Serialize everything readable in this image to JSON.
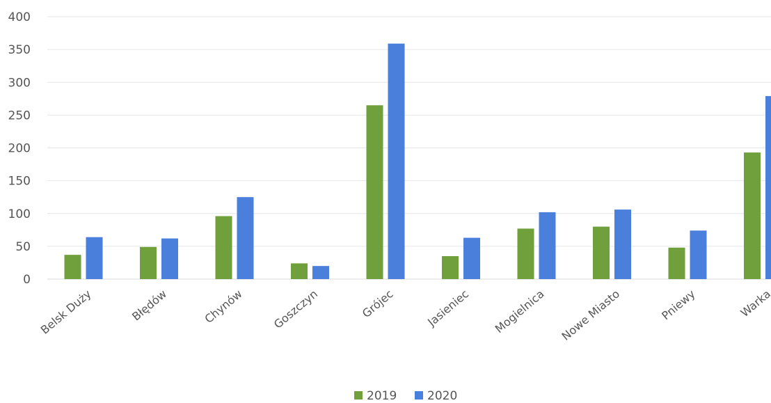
{
  "chart_data": {
    "type": "bar",
    "categories": [
      "Belsk Duży",
      "Błędów",
      "Chynów",
      "Goszczyn",
      "Grójec",
      "Jasieniec",
      "Mogielnica",
      "Nowe Miasto",
      "Pniewy",
      "Warka"
    ],
    "series": [
      {
        "name": "2019",
        "color": "#70a03c",
        "values": [
          37,
          49,
          96,
          24,
          265,
          35,
          77,
          80,
          48,
          193
        ]
      },
      {
        "name": "2020",
        "color": "#4a7fdc",
        "values": [
          64,
          62,
          125,
          20,
          359,
          63,
          102,
          106,
          74,
          279
        ]
      }
    ],
    "title": "",
    "xlabel": "",
    "ylabel": "",
    "ylim": [
      0,
      400
    ],
    "yticks": [
      0,
      50,
      100,
      150,
      200,
      250,
      300,
      350,
      400
    ],
    "grid": true,
    "legend": "bottom"
  }
}
